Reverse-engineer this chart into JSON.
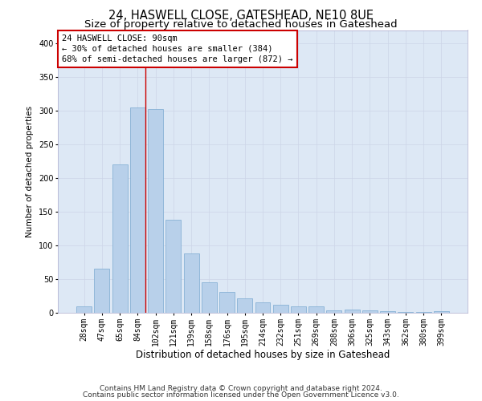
{
  "title": "24, HASWELL CLOSE, GATESHEAD, NE10 8UE",
  "subtitle": "Size of property relative to detached houses in Gateshead",
  "xlabel": "Distribution of detached houses by size in Gateshead",
  "ylabel": "Number of detached properties",
  "categories": [
    "28sqm",
    "47sqm",
    "65sqm",
    "84sqm",
    "102sqm",
    "121sqm",
    "139sqm",
    "158sqm",
    "176sqm",
    "195sqm",
    "214sqm",
    "232sqm",
    "251sqm",
    "269sqm",
    "288sqm",
    "306sqm",
    "325sqm",
    "343sqm",
    "362sqm",
    "380sqm",
    "399sqm"
  ],
  "values": [
    10,
    65,
    220,
    305,
    303,
    138,
    88,
    45,
    31,
    21,
    15,
    12,
    10,
    9,
    4,
    5,
    3,
    2,
    1,
    1,
    2
  ],
  "bar_color": "#b8d0ea",
  "bar_edge_color": "#7aaad0",
  "vline_color": "#cc0000",
  "vline_pos": 3.42,
  "annotation_line1": "24 HASWELL CLOSE: 90sqm",
  "annotation_line2": "← 30% of detached houses are smaller (384)",
  "annotation_line3": "68% of semi-detached houses are larger (872) →",
  "ann_box_facecolor": "#ffffff",
  "ann_box_edgecolor": "#cc0000",
  "ylim": [
    0,
    420
  ],
  "yticks": [
    0,
    50,
    100,
    150,
    200,
    250,
    300,
    350,
    400
  ],
  "grid_color": "#ccd5e8",
  "bg_color": "#dde8f5",
  "footer_line1": "Contains HM Land Registry data © Crown copyright and database right 2024.",
  "footer_line2": "Contains public sector information licensed under the Open Government Licence v3.0.",
  "title_fontsize": 10.5,
  "subtitle_fontsize": 9.5,
  "xlabel_fontsize": 8.5,
  "ylabel_fontsize": 7.5,
  "tick_fontsize": 7,
  "ann_fontsize": 7.5,
  "footer_fontsize": 6.5
}
